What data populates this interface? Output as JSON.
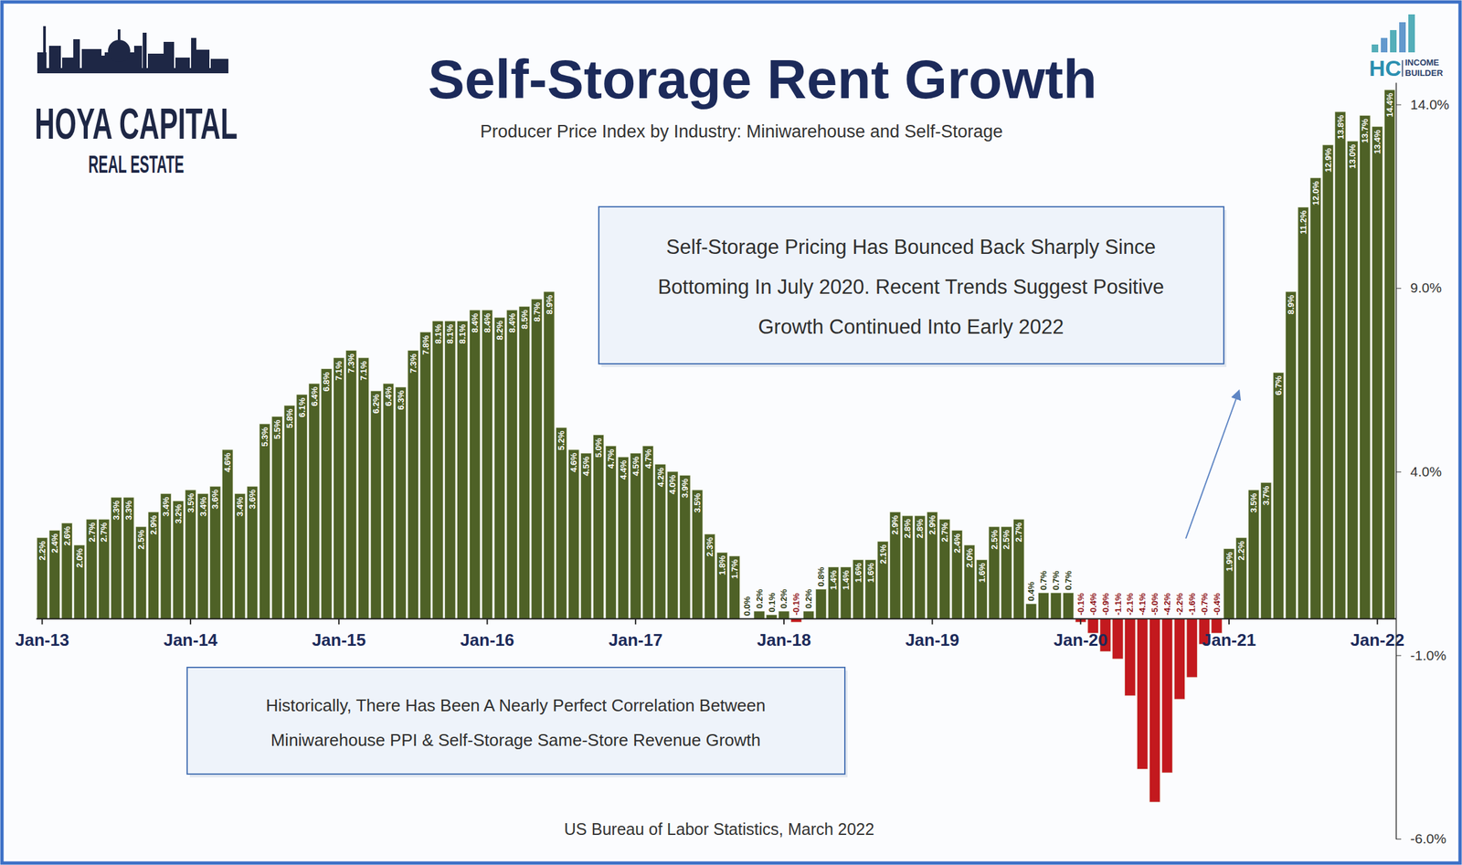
{
  "chart_data": {
    "type": "bar",
    "title": "Self-Storage Rent Growth",
    "subtitle": "Producer Price Index by Industry: Miniwarehouse and Self-Storage",
    "source": "US Bureau of Labor Statistics, March 2022",
    "annotations": [
      [
        "Self-Storage Pricing Has Bounced Back Sharply Since",
        "Bottoming In July 2020. Recent Trends Suggest Positive",
        "Growth Continued Into Early 2022"
      ],
      [
        "Historically, There Has Been A Nearly Perfect Correlation Between",
        "Miniwarehouse PPI & Self-Storage Same-Store Revenue Growth"
      ]
    ],
    "logos": [
      [
        "HOYA CAPITAL",
        "REAL ESTATE"
      ],
      [
        "HC",
        "INCOME",
        "BUILDER"
      ]
    ],
    "categories": [
      "Jan-13",
      null,
      null,
      null,
      null,
      null,
      null,
      null,
      null,
      null,
      null,
      null,
      "Jan-14",
      null,
      null,
      null,
      null,
      null,
      null,
      null,
      null,
      null,
      null,
      null,
      "Jan-15",
      null,
      null,
      null,
      null,
      null,
      null,
      null,
      null,
      null,
      null,
      null,
      "Jan-16",
      null,
      null,
      null,
      null,
      null,
      null,
      null,
      null,
      null,
      null,
      null,
      "Jan-17",
      null,
      null,
      null,
      null,
      null,
      null,
      null,
      null,
      null,
      null,
      null,
      "Jan-18",
      null,
      null,
      null,
      null,
      null,
      null,
      null,
      null,
      null,
      null,
      null,
      "Jan-19",
      null,
      null,
      null,
      null,
      null,
      null,
      null,
      null,
      null,
      null,
      null,
      "Jan-20",
      null,
      null,
      null,
      null,
      null,
      null,
      null,
      null,
      null,
      null,
      null,
      "Jan-21",
      null,
      null,
      null,
      null,
      null,
      null,
      null,
      null,
      null,
      null,
      null,
      "Jan-22",
      null
    ],
    "values": [
      2.2,
      2.4,
      2.6,
      2.0,
      2.7,
      2.7,
      3.3,
      3.3,
      2.5,
      2.9,
      3.4,
      3.2,
      3.5,
      3.4,
      3.6,
      4.6,
      3.4,
      3.6,
      5.3,
      5.5,
      5.8,
      6.1,
      6.4,
      6.8,
      7.1,
      7.3,
      7.1,
      6.2,
      6.4,
      6.3,
      7.3,
      7.8,
      8.1,
      8.1,
      8.1,
      8.4,
      8.4,
      8.2,
      8.4,
      8.5,
      8.7,
      8.9,
      5.2,
      4.6,
      4.5,
      5.0,
      4.7,
      4.4,
      4.5,
      4.7,
      4.2,
      4.0,
      3.9,
      3.5,
      2.3,
      1.8,
      1.7,
      0.0,
      0.2,
      0.1,
      0.2,
      -0.1,
      0.2,
      0.8,
      1.4,
      1.4,
      1.6,
      1.6,
      2.1,
      2.9,
      2.8,
      2.8,
      2.9,
      2.7,
      2.4,
      2.0,
      1.6,
      2.5,
      2.5,
      2.7,
      0.4,
      0.7,
      0.7,
      0.7,
      -0.1,
      -0.4,
      -0.9,
      -1.1,
      -2.1,
      -4.1,
      -5.0,
      -4.2,
      -2.2,
      -1.6,
      -0.7,
      -0.4,
      1.9,
      2.2,
      3.5,
      3.7,
      6.7,
      8.9,
      11.2,
      12.0,
      12.9,
      13.8,
      13.0,
      13.7,
      13.4,
      14.4
    ],
    "value_labels": [
      "2.2%",
      "2.4%",
      "2.6%",
      "2.0%",
      "2.7%",
      "2.7%",
      "3.3%",
      "3.3%",
      "2.5%",
      "2.9%",
      "3.4%",
      "3.2%",
      "3.5%",
      "3.4%",
      "3.6%",
      "4.6%",
      "3.4%",
      "3.6%",
      "5.3%",
      "5.5%",
      "5.8%",
      "6.1%",
      "6.4%",
      "6.8%",
      "7.1%",
      "7.3%",
      "7.1%",
      "6.2%",
      "6.4%",
      "6.3%",
      "7.3%",
      "7.8%",
      "8.1%",
      "8.1%",
      "8.1%",
      "8.4%",
      "8.4%",
      "8.2%",
      "8.4%",
      "8.5%",
      "8.7%",
      "8.9%",
      "5.2%",
      "4.6%",
      "4.5%",
      "5.0%",
      "4.7%",
      "4.4%",
      "4.5%",
      "4.7%",
      "4.2%",
      "4.0%",
      "3.9%",
      "3.5%",
      "2.3%",
      "1.8%",
      "1.7%",
      "0.0%",
      "0.2%",
      "0.1%",
      "0.2%",
      "-0.1%",
      "0.2%",
      "0.8%",
      "1.4%",
      "1.4%",
      "1.6%",
      "1.6%",
      "2.1%",
      "2.9%",
      "2.8%",
      "2.8%",
      "2.9%",
      "2.7%",
      "2.4%",
      "2.0%",
      "1.6%",
      "2.5%",
      "2.5%",
      "2.7%",
      "0.4%",
      "0.7%",
      "0.7%",
      "0.7%",
      "-0.1%",
      "-0.4%",
      "-0.9%",
      "-1.1%",
      "-2.1%",
      "-4.1%",
      "-5.0%",
      "-4.2%",
      "-2.2%",
      "-1.6%",
      "-0.7%",
      "-0.4%",
      "1.9%",
      "2.2%",
      "3.5%",
      "3.7%",
      "6.7%",
      "8.9%",
      "11.2%",
      "12.0%",
      "12.9%",
      "13.8%",
      "13.0%",
      "13.7%",
      "13.4%",
      "14.4%"
    ],
    "colors": [
      "#4e6126",
      "#4e6126",
      "#4e6126",
      "#4e6126",
      "#4e6126",
      "#4e6126",
      "#4e6126",
      "#4e6126",
      "#4e6126",
      "#4e6126",
      "#4e6126",
      "#4e6126",
      "#4e6126",
      "#4e6126",
      "#4e6126",
      "#4e6126",
      "#4e6126",
      "#4e6126",
      "#4e6126",
      "#4e6126",
      "#4e6126",
      "#4e6126",
      "#4e6126",
      "#4e6126",
      "#4e6126",
      "#4e6126",
      "#4e6126",
      "#4e6126",
      "#4e6126",
      "#4e6126",
      "#4e6126",
      "#4e6126",
      "#4e6126",
      "#4e6126",
      "#4e6126",
      "#4e6126",
      "#4e6126",
      "#4e6126",
      "#4e6126",
      "#4e6126",
      "#4e6126",
      "#4e6126",
      "#4e6126",
      "#4e6126",
      "#4e6126",
      "#4e6126",
      "#4e6126",
      "#4e6126",
      "#4e6126",
      "#4e6126",
      "#4e6126",
      "#4e6126",
      "#4e6126",
      "#4e6126",
      "#4e6126",
      "#4e6126",
      "#4e6126",
      "#4e6126",
      "#4e6126",
      "#4e6126",
      "#4e6126",
      "#c3191e",
      "#4e6126",
      "#4e6126",
      "#4e6126",
      "#4e6126",
      "#4e6126",
      "#4e6126",
      "#4e6126",
      "#4e6126",
      "#4e6126",
      "#4e6126",
      "#4e6126",
      "#4e6126",
      "#4e6126",
      "#4e6126",
      "#4e6126",
      "#4e6126",
      "#4e6126",
      "#4e6126",
      "#4e6126",
      "#4e6126",
      "#4e6126",
      "#4e6126",
      "#c3191e",
      "#c3191e",
      "#c3191e",
      "#c3191e",
      "#c3191e",
      "#c3191e",
      "#c3191e",
      "#c3191e",
      "#c3191e",
      "#c3191e",
      "#c3191e",
      "#c3191e",
      "#4e6126",
      "#4e6126",
      "#4e6126",
      "#4e6126",
      "#4e6126",
      "#4e6126",
      "#4e6126",
      "#4e6126",
      "#4e6126",
      "#4e6126",
      "#4e6126",
      "#4e6126",
      "#4e6126",
      "#4e6126"
    ],
    "ylim": [
      -6,
      14.6
    ],
    "yticks": [
      {
        "value": -6,
        "label": "-6.0%"
      },
      {
        "value": -1,
        "label": "-1.0%"
      },
      {
        "value": 4,
        "label": "4.0%"
      },
      {
        "value": 9,
        "label": "9.0%"
      },
      {
        "value": 14,
        "label": "14.0%"
      }
    ],
    "grid": false,
    "data_labels": true
  }
}
